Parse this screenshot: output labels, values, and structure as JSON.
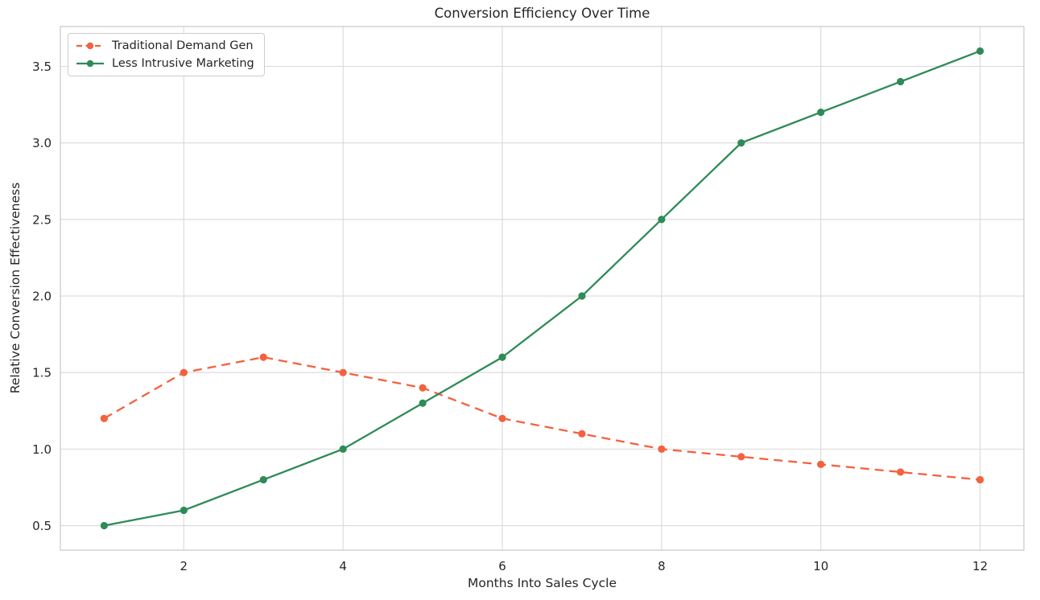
{
  "figure": {
    "background_color": "#ffffff"
  },
  "chart_data": {
    "type": "line",
    "title": "Conversion Efficiency Over Time",
    "xlabel": "Months Into Sales Cycle",
    "ylabel": "Relative Conversion Effectiveness",
    "x": [
      1,
      2,
      3,
      4,
      5,
      6,
      7,
      8,
      9,
      10,
      11,
      12
    ],
    "series": [
      {
        "name": "Traditional Demand Gen",
        "values": [
          1.2,
          1.5,
          1.6,
          1.5,
          1.4,
          1.2,
          1.1,
          1.0,
          0.95,
          0.9,
          0.85,
          0.8
        ],
        "color": "#f4613f",
        "line_style": "dashed",
        "marker": "circle"
      },
      {
        "name": "Less Intrusive Marketing",
        "values": [
          0.5,
          0.6,
          0.8,
          1.0,
          1.3,
          1.6,
          2.0,
          2.5,
          3.0,
          3.2,
          3.4,
          3.6
        ],
        "color": "#2e8b57",
        "line_style": "solid",
        "marker": "circle"
      }
    ],
    "xlim": [
      0.45,
      12.55
    ],
    "ylim": [
      0.34,
      3.76
    ],
    "xticks": [
      2,
      4,
      6,
      8,
      10,
      12
    ],
    "xticklabels": [
      "2",
      "4",
      "6",
      "8",
      "10",
      "12"
    ],
    "yticks": [
      0.5,
      1.0,
      1.5,
      2.0,
      2.5,
      3.0,
      3.5
    ],
    "yticklabels": [
      "0.5",
      "1.0",
      "1.5",
      "2.0",
      "2.5",
      "3.0",
      "3.5"
    ],
    "grid": true,
    "grid_color": "#d9d9d9",
    "spine_color": "#cccccc",
    "text_color": "#262626",
    "legend": {
      "position": "upper-left",
      "entries": [
        "Traditional Demand Gen",
        "Less Intrusive Marketing"
      ]
    }
  }
}
